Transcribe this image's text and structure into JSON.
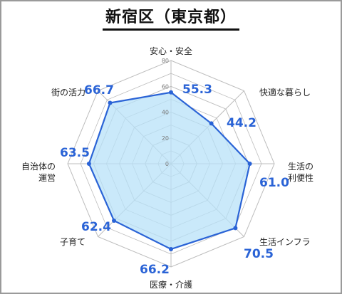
{
  "title": "新宿区（東京都）",
  "chart_data": {
    "type": "radar",
    "title": "新宿区（東京都）",
    "categories": [
      "安心・安全",
      "快適な暮らし",
      "生活の利便性",
      "生活インフラ",
      "医療・介護",
      "子育て",
      "自治体の運営",
      "街の活力"
    ],
    "category_lines": [
      [
        "安心・安全"
      ],
      [
        "快適な暮らし"
      ],
      [
        "生活の",
        "利便性"
      ],
      [
        "生活インフラ"
      ],
      [
        "医療・介護"
      ],
      [
        "子育て"
      ],
      [
        "自治体の",
        "運営"
      ],
      [
        "街の活力"
      ]
    ],
    "values": [
      55.3,
      44.2,
      61.0,
      70.5,
      66.2,
      62.4,
      63.5,
      66.7
    ],
    "value_labels": [
      "55.3",
      "44.2",
      "61.0",
      "70.5",
      "66.2",
      "62.4",
      "63.5",
      "66.7"
    ],
    "rlim": [
      0,
      80
    ],
    "ticks": [
      0,
      20,
      40,
      60,
      80
    ],
    "tick_labels": [
      "0",
      "20",
      "40",
      "60",
      "80"
    ],
    "grid": true,
    "legend": "none",
    "colors": {
      "line": "#2a63d6",
      "fill": "#b8e2f8",
      "grid": "#bdbdbd",
      "value_text": "#2a63d6"
    }
  }
}
